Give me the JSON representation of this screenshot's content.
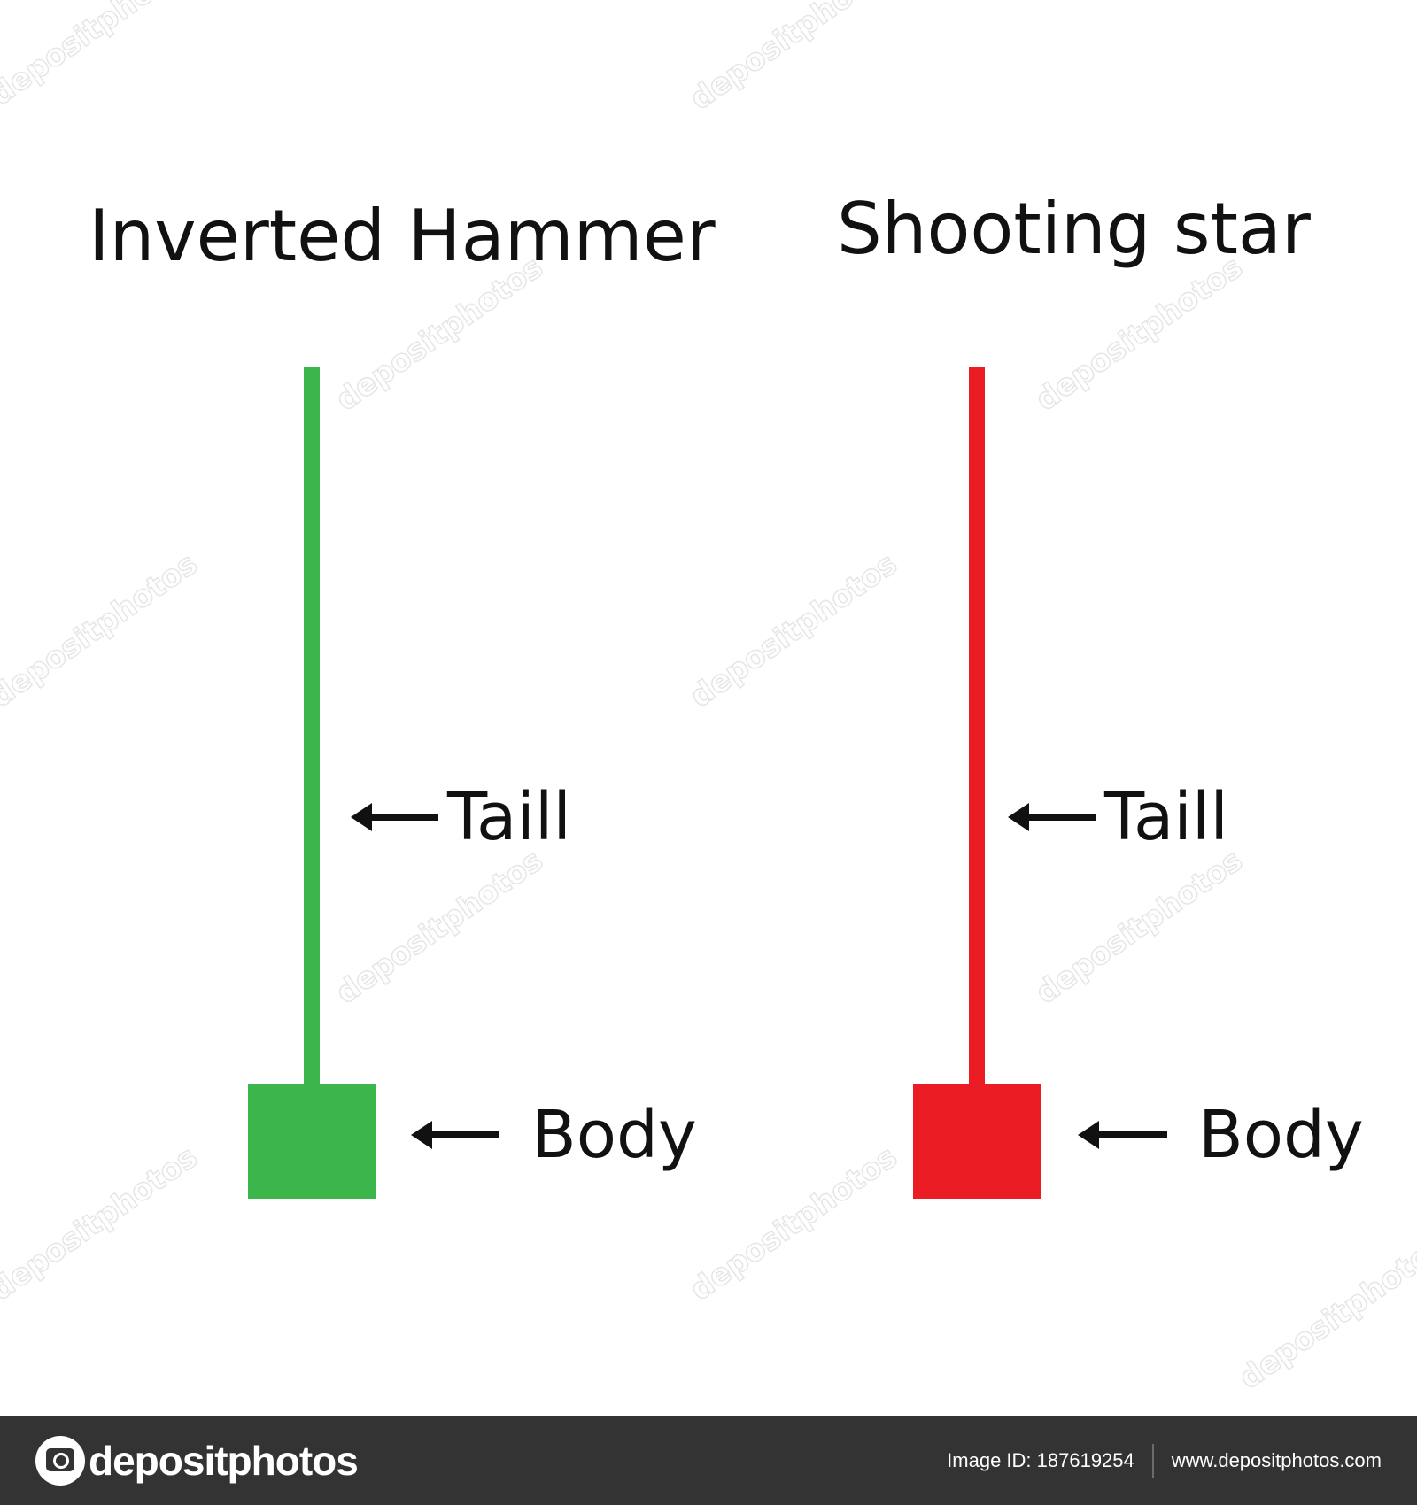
{
  "diagram": {
    "left": {
      "title": "Inverted Hammer",
      "color": "#3cb54a",
      "tail_label": "Taill",
      "body_label": "Body"
    },
    "right": {
      "title": "Shooting star",
      "color": "#ec1c24",
      "tail_label": "Taill",
      "body_label": "Body"
    },
    "arrow_color": "#111111"
  },
  "footer": {
    "logo_text": "depositphotos",
    "image_id": "Image ID: 187619254",
    "url": "www.depositphotos.com"
  },
  "watermark_text": "depositphotos"
}
